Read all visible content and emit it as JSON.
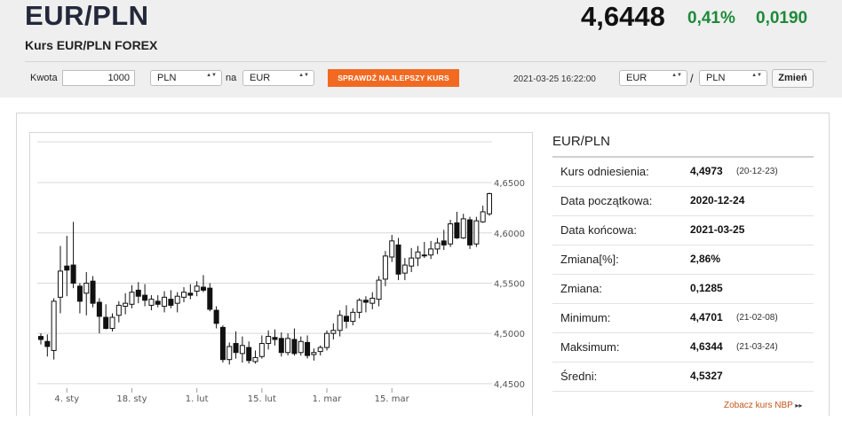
{
  "header": {
    "title": "EUR/PLN",
    "subtitle": "Kurs EUR/PLN FOREX",
    "rate": "4,6448",
    "change_percent": "0,41%",
    "change_abs": "0,0190",
    "change_color": "#1d8a3a"
  },
  "converter": {
    "amount_label": "Kwota",
    "amount_value": "1000",
    "from_currency": "PLN",
    "to_label": "na",
    "to_currency": "EUR",
    "best_rate_button": "SPRAWDŹ NAJLEPSZY KURS",
    "timestamp": "2021-03-25 16:22:00",
    "pair_base": "EUR",
    "pair_sep": "/",
    "pair_quote": "PLN",
    "change_button": "Zmień",
    "accent_color": "#f26a21"
  },
  "info": {
    "title": "EUR/PLN",
    "rows": [
      {
        "label": "Kurs odniesienia:",
        "value": "4,4973",
        "date": "(20-12-23)"
      },
      {
        "label": "Data początkowa:",
        "value": "2020-12-24",
        "date": ""
      },
      {
        "label": "Data końcowa:",
        "value": "2021-03-25",
        "date": ""
      },
      {
        "label": "Zmiana[%]:",
        "value": "2,86%",
        "date": ""
      },
      {
        "label": "Zmiana:",
        "value": "0,1285",
        "date": ""
      },
      {
        "label": "Minimum:",
        "value": "4,4701",
        "date": "(21-02-08)"
      },
      {
        "label": "Maksimum:",
        "value": "4,6344",
        "date": "(21-03-24)"
      },
      {
        "label": "Średni:",
        "value": "4,5327",
        "date": ""
      }
    ],
    "nbp_link": "Zobacz kurs NBP",
    "nbp_arrow": "▸▸"
  },
  "chart_data": {
    "type": "candlestick",
    "x_tick_labels": [
      "4. sty",
      "18. sty",
      "1. lut",
      "15. lut",
      "1. mar",
      "15. mar"
    ],
    "y_tick_labels": [
      "4,4500",
      "4,5000",
      "4,5500",
      "4,6000",
      "4,6500"
    ],
    "y_ticks": [
      4.45,
      4.5,
      4.55,
      4.6,
      4.65
    ],
    "ylim": [
      4.4455,
      4.6906
    ],
    "grid": true,
    "up_color": "#ffffff",
    "down_color": "#111111",
    "candles": [
      {
        "o": 4.497,
        "h": 4.5,
        "l": 4.489,
        "c": 4.494
      },
      {
        "o": 4.492,
        "h": 4.499,
        "l": 4.477,
        "c": 4.487
      },
      {
        "o": 4.483,
        "h": 4.535,
        "l": 4.474,
        "c": 4.532
      },
      {
        "o": 4.536,
        "h": 4.587,
        "l": 4.52,
        "c": 4.562
      },
      {
        "o": 4.567,
        "h": 4.597,
        "l": 4.537,
        "c": 4.563
      },
      {
        "o": 4.568,
        "h": 4.611,
        "l": 4.545,
        "c": 4.55
      },
      {
        "o": 4.547,
        "h": 4.55,
        "l": 4.52,
        "c": 4.532
      },
      {
        "o": 4.54,
        "h": 4.561,
        "l": 4.518,
        "c": 4.55
      },
      {
        "o": 4.552,
        "h": 4.557,
        "l": 4.526,
        "c": 4.53
      },
      {
        "o": 4.531,
        "h": 4.535,
        "l": 4.5,
        "c": 4.517
      },
      {
        "o": 4.516,
        "h": 4.529,
        "l": 4.504,
        "c": 4.505
      },
      {
        "o": 4.505,
        "h": 4.52,
        "l": 4.502,
        "c": 4.516
      },
      {
        "o": 4.518,
        "h": 4.532,
        "l": 4.511,
        "c": 4.528
      },
      {
        "o": 4.527,
        "h": 4.54,
        "l": 4.519,
        "c": 4.53
      },
      {
        "o": 4.529,
        "h": 4.548,
        "l": 4.525,
        "c": 4.541
      },
      {
        "o": 4.543,
        "h": 4.551,
        "l": 4.53,
        "c": 4.537
      },
      {
        "o": 4.538,
        "h": 4.549,
        "l": 4.527,
        "c": 4.533
      },
      {
        "o": 4.528,
        "h": 4.538,
        "l": 4.523,
        "c": 4.534
      },
      {
        "o": 4.532,
        "h": 4.538,
        "l": 4.526,
        "c": 4.529
      },
      {
        "o": 4.527,
        "h": 4.542,
        "l": 4.521,
        "c": 4.536
      },
      {
        "o": 4.534,
        "h": 4.543,
        "l": 4.525,
        "c": 4.528
      },
      {
        "o": 4.53,
        "h": 4.541,
        "l": 4.521,
        "c": 4.537
      },
      {
        "o": 4.536,
        "h": 4.546,
        "l": 4.531,
        "c": 4.541
      },
      {
        "o": 4.54,
        "h": 4.549,
        "l": 4.534,
        "c": 4.538
      },
      {
        "o": 4.542,
        "h": 4.552,
        "l": 4.537,
        "c": 4.547
      },
      {
        "o": 4.546,
        "h": 4.558,
        "l": 4.541,
        "c": 4.543
      },
      {
        "o": 4.545,
        "h": 4.55,
        "l": 4.522,
        "c": 4.524
      },
      {
        "o": 4.523,
        "h": 4.527,
        "l": 4.505,
        "c": 4.51
      },
      {
        "o": 4.506,
        "h": 4.508,
        "l": 4.471,
        "c": 4.474
      },
      {
        "o": 4.474,
        "h": 4.491,
        "l": 4.469,
        "c": 4.487
      },
      {
        "o": 4.49,
        "h": 4.502,
        "l": 4.475,
        "c": 4.481
      },
      {
        "o": 4.48,
        "h": 4.497,
        "l": 4.471,
        "c": 4.488
      },
      {
        "o": 4.486,
        "h": 4.492,
        "l": 4.47,
        "c": 4.473
      },
      {
        "o": 4.472,
        "h": 4.483,
        "l": 4.47,
        "c": 4.476
      },
      {
        "o": 4.477,
        "h": 4.498,
        "l": 4.475,
        "c": 4.49
      },
      {
        "o": 4.49,
        "h": 4.503,
        "l": 4.484,
        "c": 4.497
      },
      {
        "o": 4.496,
        "h": 4.504,
        "l": 4.488,
        "c": 4.494
      },
      {
        "o": 4.495,
        "h": 4.501,
        "l": 4.477,
        "c": 4.481
      },
      {
        "o": 4.481,
        "h": 4.5,
        "l": 4.478,
        "c": 4.495
      },
      {
        "o": 4.494,
        "h": 4.505,
        "l": 4.478,
        "c": 4.48
      },
      {
        "o": 4.481,
        "h": 4.497,
        "l": 4.478,
        "c": 4.492
      },
      {
        "o": 4.491,
        "h": 4.498,
        "l": 4.475,
        "c": 4.478
      },
      {
        "o": 4.479,
        "h": 4.485,
        "l": 4.473,
        "c": 4.481
      },
      {
        "o": 4.482,
        "h": 4.488,
        "l": 4.478,
        "c": 4.486
      },
      {
        "o": 4.486,
        "h": 4.503,
        "l": 4.483,
        "c": 4.5
      },
      {
        "o": 4.5,
        "h": 4.51,
        "l": 4.494,
        "c": 4.503
      },
      {
        "o": 4.503,
        "h": 4.523,
        "l": 4.497,
        "c": 4.518
      },
      {
        "o": 4.517,
        "h": 4.528,
        "l": 4.505,
        "c": 4.512
      },
      {
        "o": 4.512,
        "h": 4.525,
        "l": 4.508,
        "c": 4.521
      },
      {
        "o": 4.521,
        "h": 4.535,
        "l": 4.515,
        "c": 4.533
      },
      {
        "o": 4.533,
        "h": 4.537,
        "l": 4.521,
        "c": 4.531
      },
      {
        "o": 4.53,
        "h": 4.541,
        "l": 4.524,
        "c": 4.535
      },
      {
        "o": 4.534,
        "h": 4.557,
        "l": 4.527,
        "c": 4.553
      },
      {
        "o": 4.554,
        "h": 4.582,
        "l": 4.547,
        "c": 4.577
      },
      {
        "o": 4.576,
        "h": 4.598,
        "l": 4.571,
        "c": 4.592
      },
      {
        "o": 4.588,
        "h": 4.595,
        "l": 4.553,
        "c": 4.559
      },
      {
        "o": 4.56,
        "h": 4.575,
        "l": 4.553,
        "c": 4.568
      },
      {
        "o": 4.567,
        "h": 4.585,
        "l": 4.561,
        "c": 4.575
      },
      {
        "o": 4.575,
        "h": 4.587,
        "l": 4.567,
        "c": 4.581
      },
      {
        "o": 4.578,
        "h": 4.591,
        "l": 4.575,
        "c": 4.578
      },
      {
        "o": 4.578,
        "h": 4.592,
        "l": 4.574,
        "c": 4.584
      },
      {
        "o": 4.584,
        "h": 4.595,
        "l": 4.579,
        "c": 4.59
      },
      {
        "o": 4.592,
        "h": 4.603,
        "l": 4.583,
        "c": 4.588
      },
      {
        "o": 4.589,
        "h": 4.613,
        "l": 4.586,
        "c": 4.609
      },
      {
        "o": 4.61,
        "h": 4.621,
        "l": 4.594,
        "c": 4.595
      },
      {
        "o": 4.595,
        "h": 4.619,
        "l": 4.594,
        "c": 4.614
      },
      {
        "o": 4.613,
        "h": 4.616,
        "l": 4.584,
        "c": 4.588
      },
      {
        "o": 4.589,
        "h": 4.616,
        "l": 4.586,
        "c": 4.612
      },
      {
        "o": 4.611,
        "h": 4.627,
        "l": 4.61,
        "c": 4.621
      },
      {
        "o": 4.619,
        "h": 4.64,
        "l": 4.617,
        "c": 4.639
      }
    ]
  }
}
